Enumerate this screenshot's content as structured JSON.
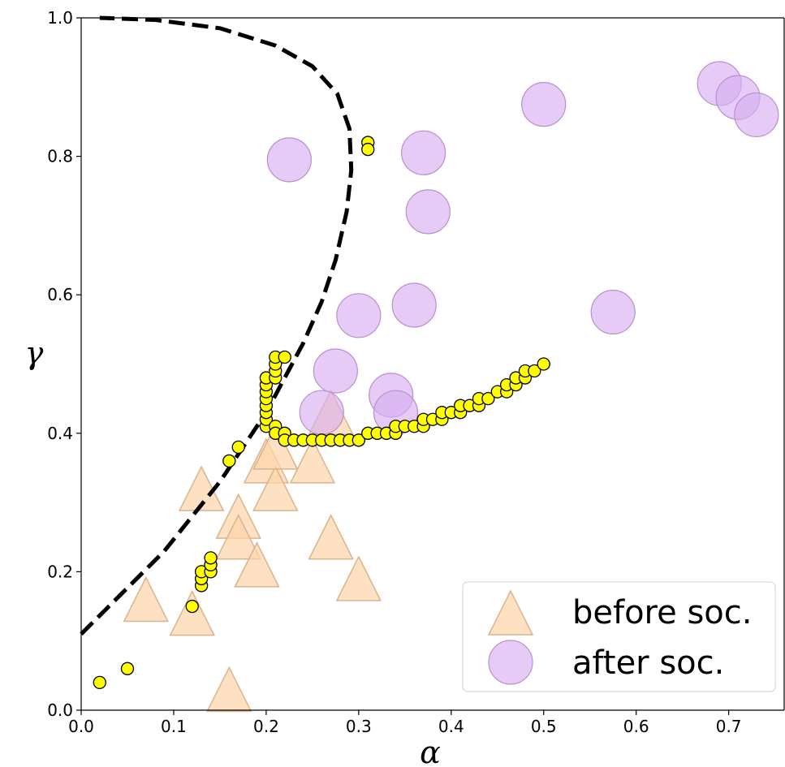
{
  "chart_data": {
    "type": "scatter",
    "xlabel": "α",
    "ylabel": "γ",
    "xlim": [
      0.0,
      0.76
    ],
    "ylim": [
      0.0,
      1.0
    ],
    "xticks": [
      "0.0",
      "0.1",
      "0.2",
      "0.3",
      "0.4",
      "0.5",
      "0.6",
      "0.7"
    ],
    "yticks": [
      "0.0",
      "0.2",
      "0.4",
      "0.6",
      "0.8",
      "1.0"
    ],
    "grid": false,
    "legend_position": "bottom-right",
    "colors": {
      "before": "#fdd4a8",
      "before_edge": "#d9b48c",
      "after": "#d7aff0",
      "after_edge": "#b98fd1",
      "trajectory": "#ffff00",
      "trajectory_edge": "#000000",
      "boundary": "#000000"
    },
    "series": [
      {
        "name": "before soc.",
        "marker": "triangle",
        "points": [
          [
            0.07,
            0.16
          ],
          [
            0.12,
            0.14
          ],
          [
            0.13,
            0.32
          ],
          [
            0.16,
            0.03
          ],
          [
            0.17,
            0.28
          ],
          [
            0.17,
            0.25
          ],
          [
            0.19,
            0.21
          ],
          [
            0.2,
            0.36
          ],
          [
            0.21,
            0.32
          ],
          [
            0.21,
            0.38
          ],
          [
            0.25,
            0.36
          ],
          [
            0.27,
            0.25
          ],
          [
            0.27,
            0.43
          ],
          [
            0.3,
            0.19
          ]
        ]
      },
      {
        "name": "after soc.",
        "marker": "circle",
        "points": [
          [
            0.225,
            0.795
          ],
          [
            0.26,
            0.43
          ],
          [
            0.275,
            0.49
          ],
          [
            0.3,
            0.57
          ],
          [
            0.335,
            0.455
          ],
          [
            0.34,
            0.43
          ],
          [
            0.36,
            0.585
          ],
          [
            0.37,
            0.805
          ],
          [
            0.375,
            0.72
          ],
          [
            0.5,
            0.875
          ],
          [
            0.575,
            0.575
          ],
          [
            0.69,
            0.905
          ],
          [
            0.71,
            0.885
          ],
          [
            0.73,
            0.86
          ]
        ]
      },
      {
        "marker": "small-circle",
        "points": [
          [
            0.02,
            0.04
          ],
          [
            0.05,
            0.06
          ],
          [
            0.12,
            0.15
          ],
          [
            0.13,
            0.18
          ],
          [
            0.13,
            0.19
          ],
          [
            0.13,
            0.2
          ],
          [
            0.14,
            0.2
          ],
          [
            0.14,
            0.21
          ],
          [
            0.14,
            0.22
          ],
          [
            0.16,
            0.36
          ],
          [
            0.17,
            0.38
          ],
          [
            0.31,
            0.82
          ],
          [
            0.31,
            0.81
          ],
          [
            0.2,
            0.41
          ],
          [
            0.2,
            0.42
          ],
          [
            0.2,
            0.43
          ],
          [
            0.2,
            0.44
          ],
          [
            0.2,
            0.45
          ],
          [
            0.2,
            0.46
          ],
          [
            0.2,
            0.47
          ],
          [
            0.2,
            0.48
          ],
          [
            0.21,
            0.48
          ],
          [
            0.21,
            0.49
          ],
          [
            0.21,
            0.5
          ],
          [
            0.21,
            0.51
          ],
          [
            0.22,
            0.51
          ],
          [
            0.21,
            0.41
          ],
          [
            0.21,
            0.4
          ],
          [
            0.22,
            0.4
          ],
          [
            0.22,
            0.39
          ],
          [
            0.23,
            0.39
          ],
          [
            0.24,
            0.39
          ],
          [
            0.25,
            0.39
          ],
          [
            0.26,
            0.39
          ],
          [
            0.27,
            0.39
          ],
          [
            0.28,
            0.39
          ],
          [
            0.29,
            0.39
          ],
          [
            0.3,
            0.39
          ],
          [
            0.31,
            0.4
          ],
          [
            0.32,
            0.4
          ],
          [
            0.33,
            0.4
          ],
          [
            0.34,
            0.4
          ],
          [
            0.34,
            0.41
          ],
          [
            0.35,
            0.41
          ],
          [
            0.36,
            0.41
          ],
          [
            0.37,
            0.41
          ],
          [
            0.37,
            0.42
          ],
          [
            0.38,
            0.42
          ],
          [
            0.39,
            0.42
          ],
          [
            0.39,
            0.43
          ],
          [
            0.4,
            0.43
          ],
          [
            0.41,
            0.43
          ],
          [
            0.41,
            0.44
          ],
          [
            0.42,
            0.44
          ],
          [
            0.43,
            0.44
          ],
          [
            0.43,
            0.45
          ],
          [
            0.44,
            0.45
          ],
          [
            0.45,
            0.46
          ],
          [
            0.46,
            0.46
          ],
          [
            0.46,
            0.47
          ],
          [
            0.47,
            0.47
          ],
          [
            0.47,
            0.48
          ],
          [
            0.48,
            0.48
          ],
          [
            0.48,
            0.49
          ],
          [
            0.49,
            0.49
          ],
          [
            0.5,
            0.5
          ]
        ]
      },
      {
        "marker": "dashed-line",
        "points": [
          [
            0.0,
            0.11
          ],
          [
            0.03,
            0.15
          ],
          [
            0.06,
            0.19
          ],
          [
            0.09,
            0.23
          ],
          [
            0.12,
            0.28
          ],
          [
            0.15,
            0.33
          ],
          [
            0.18,
            0.39
          ],
          [
            0.2,
            0.43
          ],
          [
            0.22,
            0.48
          ],
          [
            0.24,
            0.53
          ],
          [
            0.26,
            0.59
          ],
          [
            0.275,
            0.65
          ],
          [
            0.287,
            0.72
          ],
          [
            0.292,
            0.78
          ],
          [
            0.29,
            0.84
          ],
          [
            0.277,
            0.89
          ],
          [
            0.25,
            0.93
          ],
          [
            0.21,
            0.96
          ],
          [
            0.15,
            0.985
          ],
          [
            0.08,
            0.997
          ],
          [
            0.02,
            1.0
          ]
        ]
      }
    ]
  }
}
